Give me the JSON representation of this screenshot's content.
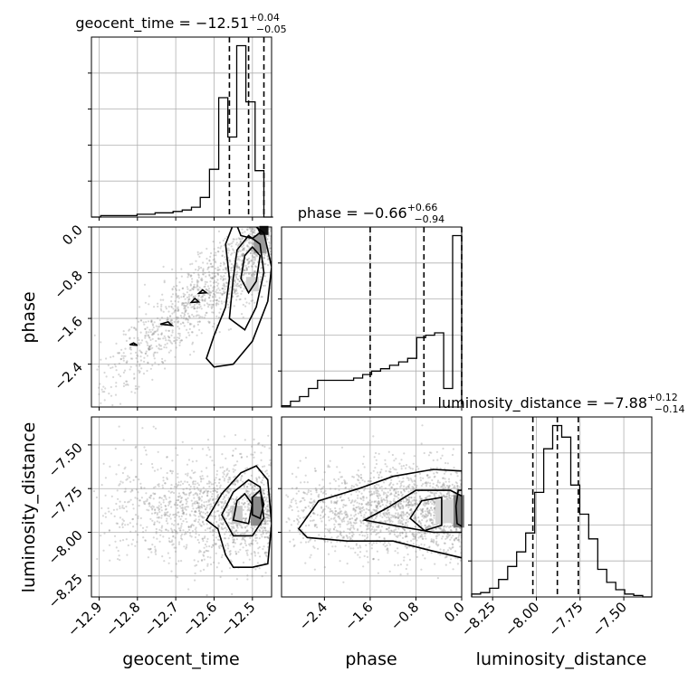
{
  "chart_data": {
    "type": "corner",
    "parameters": [
      "geocent_time",
      "phase",
      "luminosity_distance"
    ],
    "titles": [
      {
        "param": "geocent_time",
        "prefix": "geocent_time = ",
        "median": "−12.51",
        "plus": "+0.04",
        "minus": "−0.05"
      },
      {
        "param": "phase",
        "prefix": "phase = ",
        "median": "−0.66",
        "plus": "+0.66",
        "minus": "−0.94"
      },
      {
        "param": "luminosity_distance",
        "prefix": "luminosity_distance = ",
        "median": "−7.88",
        "plus": "+0.12",
        "minus": "−0.14"
      }
    ],
    "axis_labels": {
      "geocent_time": "geocent_time",
      "phase": "phase",
      "luminosity_distance": "luminosity_distance"
    },
    "ranges": {
      "geocent_time": [
        -12.92,
        -12.45
      ],
      "phase": [
        -3.15,
        0.0
      ],
      "luminosity_distance": [
        -8.37,
        -7.34
      ]
    },
    "ticks": {
      "geocent_time": {
        "values": [
          -12.9,
          -12.8,
          -12.7,
          -12.6,
          -12.5
        ],
        "labels": [
          "−12.9",
          "−12.8",
          "−12.7",
          "−12.6",
          "−12.5"
        ]
      },
      "phase": {
        "values": [
          -2.4,
          -1.6,
          -0.8,
          0.0
        ],
        "labels": [
          "−2.4",
          "−1.6",
          "−0.8",
          "0.0"
        ]
      },
      "luminosity_distance": {
        "values": [
          -8.25,
          -8.0,
          -7.75,
          -7.5
        ],
        "labels": [
          "−8.25",
          "−8.00",
          "−7.75",
          "−7.50"
        ]
      }
    },
    "quantiles": {
      "geocent_time": [
        -12.56,
        -12.51,
        -12.47
      ],
      "phase": [
        -1.6,
        -0.66,
        0.0
      ],
      "luminosity_distance": [
        -8.02,
        -7.88,
        -7.76
      ]
    },
    "histograms": {
      "geocent_time": {
        "edges": [
          -12.92,
          -12.896,
          -12.872,
          -12.849,
          -12.825,
          -12.801,
          -12.778,
          -12.754,
          -12.73,
          -12.707,
          -12.683,
          -12.659,
          -12.636,
          -12.612,
          -12.588,
          -12.564,
          -12.541,
          -12.517,
          -12.493,
          -12.47,
          -12.446
        ],
        "counts": [
          0,
          1,
          1,
          1,
          1,
          2,
          2,
          3,
          3,
          4,
          5,
          7,
          14,
          34,
          85,
          57,
          122,
          82,
          33,
          0
        ]
      },
      "phase": {
        "edges": [
          -3.15,
          -2.9925,
          -2.835,
          -2.6775,
          -2.52,
          -2.3625,
          -2.205,
          -2.0475,
          -1.89,
          -1.7325,
          -1.575,
          -1.4175,
          -1.26,
          -1.1025,
          -0.945,
          -0.7875,
          -0.63,
          -0.4725,
          -0.315,
          -0.1575,
          0.0
        ],
        "counts": [
          1,
          5,
          9,
          16,
          23,
          23,
          23,
          23,
          25,
          28,
          31,
          33,
          36,
          39,
          42,
          60,
          62,
          64,
          16,
          148
        ]
      },
      "luminosity_distance": {
        "edges": [
          -8.37,
          -8.3185,
          -8.267,
          -8.2155,
          -8.164,
          -8.1125,
          -8.061,
          -8.0095,
          -7.958,
          -7.9065,
          -7.855,
          -7.8035,
          -7.752,
          -7.7005,
          -7.649,
          -7.5975,
          -7.546,
          -7.4945,
          -7.443,
          -7.3915,
          -7.34
        ],
        "counts": [
          2,
          3,
          6,
          12,
          21,
          31,
          44,
          72,
          102,
          118,
          110,
          77,
          57,
          40,
          19,
          10,
          5,
          2,
          1,
          0
        ]
      }
    },
    "scatter_2d": {
      "phase_vs_geocent_time": {
        "x_param": "geocent_time",
        "y_param": "phase",
        "mode": "density with contours, peak near geocent_time -12.47, phase -0.05"
      },
      "luminosity_distance_vs_geocent_time": {
        "x_param": "geocent_time",
        "y_param": "luminosity_distance",
        "mode": "density with contours, peak near geocent_time -12.49, luminosity_distance -7.82"
      },
      "luminosity_distance_vs_phase": {
        "x_param": "phase",
        "y_param": "luminosity_distance",
        "mode": "density with contours, peak near phase -0.05, luminosity_distance -7.87"
      }
    },
    "grid": true,
    "colors": {
      "line": "#000000",
      "points": "#8c8c8c",
      "grid": "#b0b0b0"
    }
  }
}
